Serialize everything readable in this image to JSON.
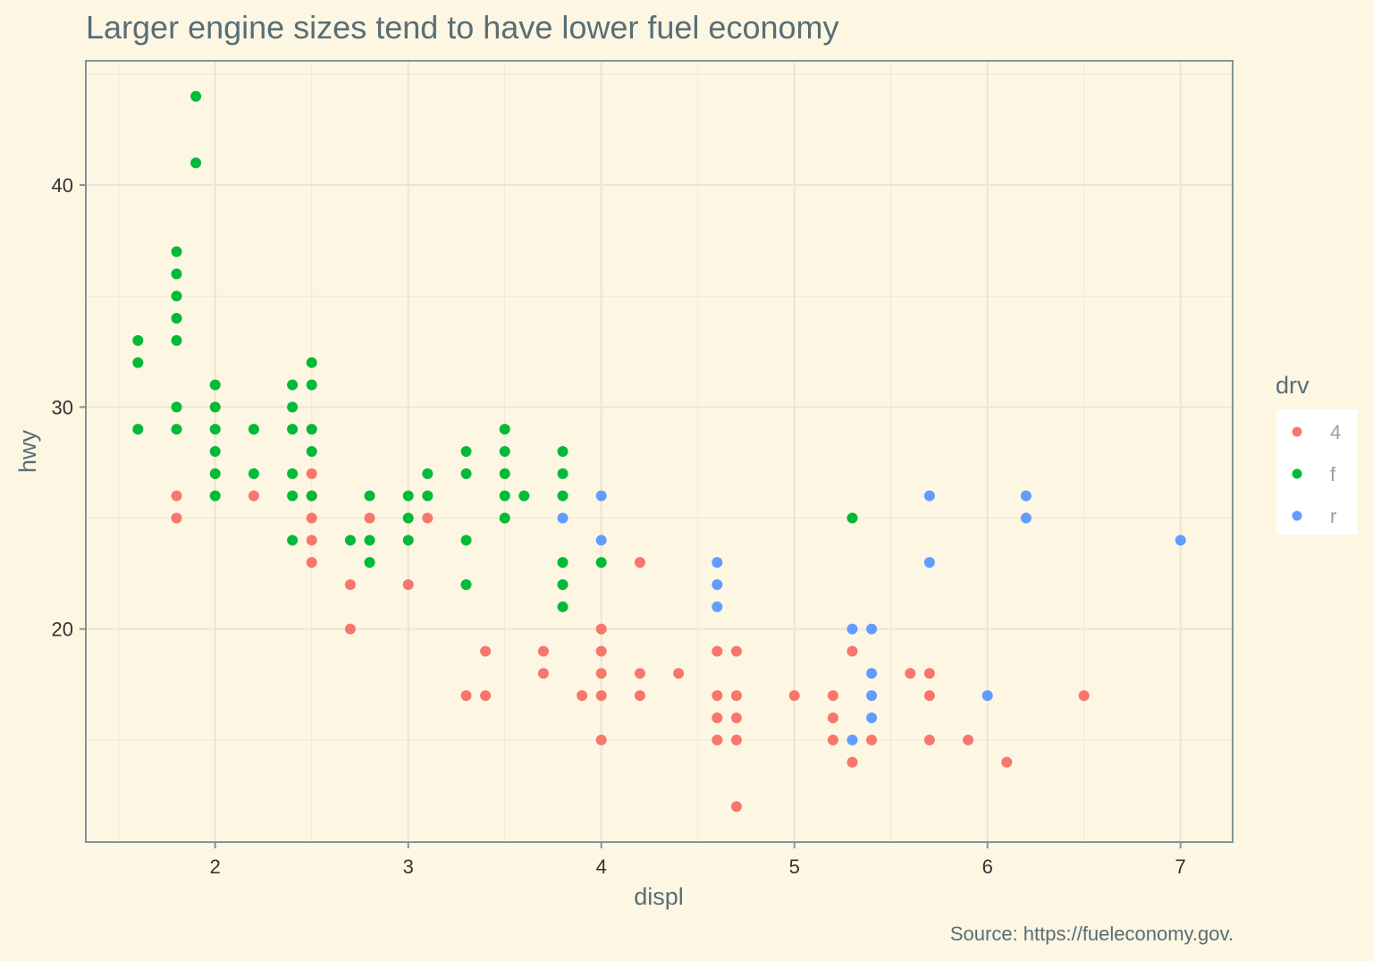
{
  "chart_data": {
    "type": "scatter",
    "title": "Larger engine sizes tend to have lower fuel economy",
    "caption": "Source: https://fueleconomy.gov.",
    "xlabel": "displ",
    "ylabel": "hwy",
    "xlim": [
      1.33,
      7.27
    ],
    "ylim": [
      10.4,
      45.6
    ],
    "xticks": [
      2,
      3,
      4,
      5,
      6,
      7
    ],
    "yticks": [
      20,
      30,
      40
    ],
    "grid": true,
    "legend": {
      "title": "drv",
      "placement": "right",
      "entries": [
        "4",
        "f",
        "r"
      ]
    },
    "colors": {
      "4": "#f8766d",
      "f": "#00ba38",
      "r": "#619cff"
    },
    "series": [
      {
        "name": "4",
        "points": [
          [
            1.8,
            26
          ],
          [
            1.8,
            25
          ],
          [
            2.2,
            26
          ],
          [
            2.5,
            27
          ],
          [
            2.5,
            26
          ],
          [
            2.5,
            25
          ],
          [
            2.5,
            24
          ],
          [
            2.5,
            23
          ],
          [
            2.7,
            22
          ],
          [
            2.7,
            20
          ],
          [
            2.8,
            25
          ],
          [
            3.0,
            22
          ],
          [
            3.1,
            25
          ],
          [
            3.3,
            17
          ],
          [
            3.4,
            19
          ],
          [
            3.4,
            17
          ],
          [
            3.7,
            19
          ],
          [
            3.7,
            18
          ],
          [
            3.9,
            17
          ],
          [
            4.0,
            20
          ],
          [
            4.0,
            19
          ],
          [
            4.0,
            18
          ],
          [
            4.0,
            17
          ],
          [
            4.0,
            15
          ],
          [
            4.2,
            23
          ],
          [
            4.2,
            18
          ],
          [
            4.2,
            17
          ],
          [
            4.4,
            18
          ],
          [
            4.6,
            19
          ],
          [
            4.6,
            17
          ],
          [
            4.6,
            16
          ],
          [
            4.6,
            15
          ],
          [
            4.7,
            19
          ],
          [
            4.7,
            17
          ],
          [
            4.7,
            16
          ],
          [
            4.7,
            15
          ],
          [
            4.7,
            12
          ],
          [
            5.0,
            17
          ],
          [
            5.2,
            17
          ],
          [
            5.2,
            16
          ],
          [
            5.2,
            15
          ],
          [
            5.3,
            19
          ],
          [
            5.3,
            14
          ],
          [
            5.4,
            15
          ],
          [
            5.6,
            18
          ],
          [
            5.7,
            18
          ],
          [
            5.7,
            17
          ],
          [
            5.7,
            15
          ],
          [
            5.9,
            15
          ],
          [
            6.1,
            14
          ],
          [
            6.5,
            17
          ]
        ]
      },
      {
        "name": "f",
        "points": [
          [
            1.6,
            33
          ],
          [
            1.6,
            32
          ],
          [
            1.6,
            29
          ],
          [
            1.8,
            37
          ],
          [
            1.8,
            36
          ],
          [
            1.8,
            35
          ],
          [
            1.8,
            34
          ],
          [
            1.8,
            33
          ],
          [
            1.8,
            30
          ],
          [
            1.8,
            29
          ],
          [
            1.9,
            44
          ],
          [
            1.9,
            41
          ],
          [
            2.0,
            31
          ],
          [
            2.0,
            30
          ],
          [
            2.0,
            29
          ],
          [
            2.0,
            28
          ],
          [
            2.0,
            27
          ],
          [
            2.0,
            26
          ],
          [
            2.2,
            29
          ],
          [
            2.2,
            27
          ],
          [
            2.4,
            31
          ],
          [
            2.4,
            30
          ],
          [
            2.4,
            29
          ],
          [
            2.4,
            27
          ],
          [
            2.4,
            26
          ],
          [
            2.4,
            24
          ],
          [
            2.5,
            32
          ],
          [
            2.5,
            31
          ],
          [
            2.5,
            29
          ],
          [
            2.5,
            28
          ],
          [
            2.5,
            26
          ],
          [
            2.7,
            24
          ],
          [
            2.8,
            26
          ],
          [
            2.8,
            24
          ],
          [
            2.8,
            23
          ],
          [
            3.0,
            26
          ],
          [
            3.0,
            25
          ],
          [
            3.0,
            24
          ],
          [
            3.1,
            27
          ],
          [
            3.1,
            26
          ],
          [
            3.3,
            28
          ],
          [
            3.3,
            27
          ],
          [
            3.3,
            24
          ],
          [
            3.3,
            22
          ],
          [
            3.5,
            29
          ],
          [
            3.5,
            28
          ],
          [
            3.5,
            27
          ],
          [
            3.5,
            26
          ],
          [
            3.5,
            25
          ],
          [
            3.6,
            26
          ],
          [
            3.8,
            28
          ],
          [
            3.8,
            27
          ],
          [
            3.8,
            26
          ],
          [
            3.8,
            23
          ],
          [
            3.8,
            22
          ],
          [
            3.8,
            21
          ],
          [
            4.0,
            23
          ],
          [
            5.3,
            25
          ]
        ]
      },
      {
        "name": "r",
        "points": [
          [
            3.8,
            25
          ],
          [
            4.0,
            26
          ],
          [
            4.0,
            24
          ],
          [
            4.6,
            23
          ],
          [
            4.6,
            22
          ],
          [
            4.6,
            21
          ],
          [
            5.3,
            20
          ],
          [
            5.3,
            15
          ],
          [
            5.4,
            20
          ],
          [
            5.4,
            18
          ],
          [
            5.4,
            17
          ],
          [
            5.4,
            16
          ],
          [
            5.7,
            26
          ],
          [
            5.7,
            23
          ],
          [
            6.0,
            17
          ],
          [
            6.2,
            26
          ],
          [
            6.2,
            25
          ],
          [
            7.0,
            24
          ]
        ]
      }
    ]
  }
}
